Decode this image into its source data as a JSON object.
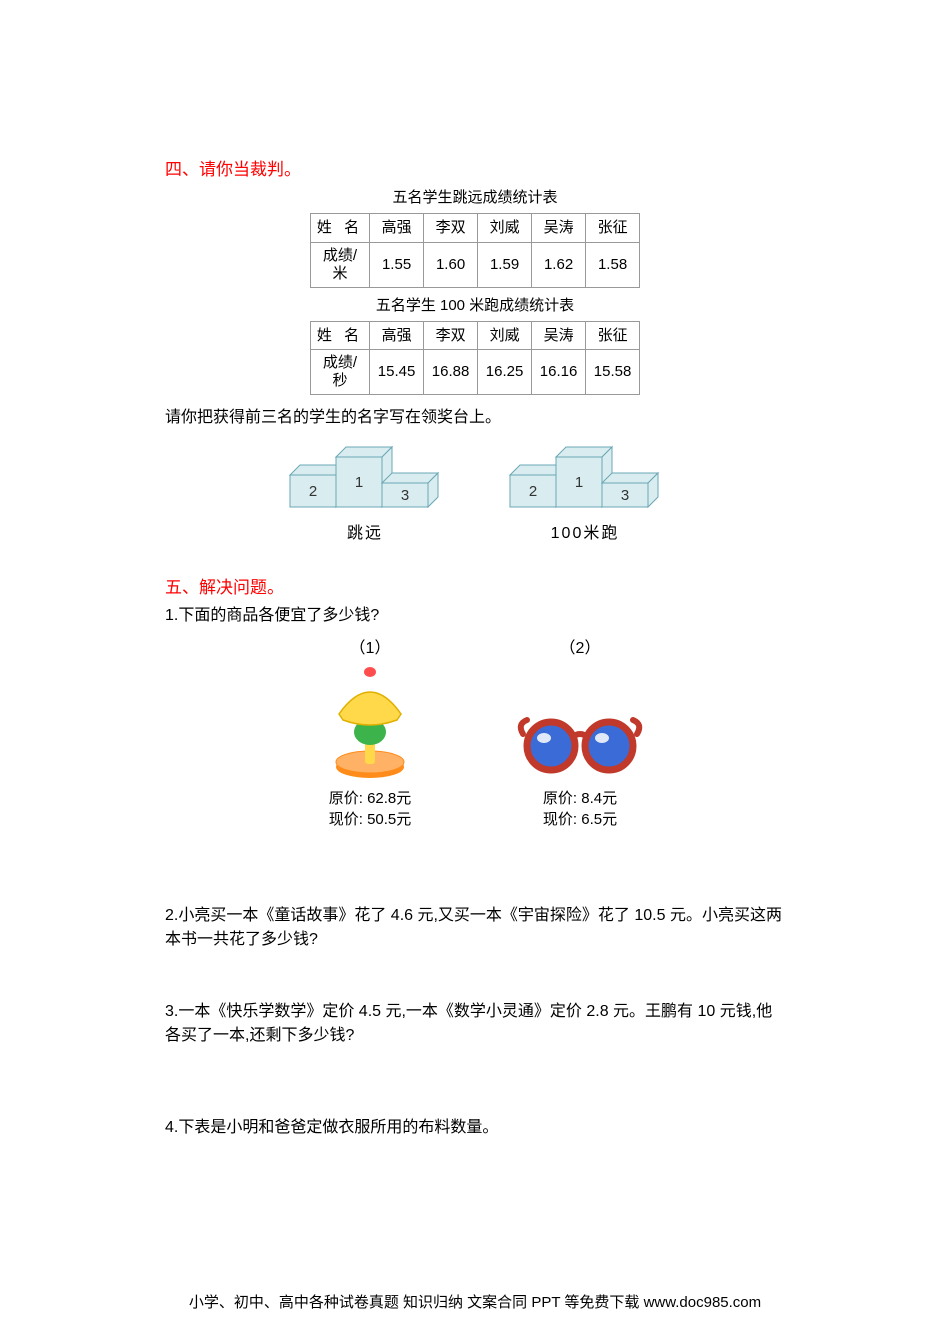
{
  "section4": {
    "title": "四、请你当裁判。",
    "table1": {
      "caption": "五名学生跳远成绩统计表",
      "header_label": "姓 名",
      "row_label_l1": "成绩/",
      "row_label_l2": "米",
      "names": [
        "高强",
        "李双",
        "刘威",
        "吴涛",
        "张征"
      ],
      "values": [
        "1.55",
        "1.60",
        "1.59",
        "1.62",
        "1.58"
      ]
    },
    "table2": {
      "caption": "五名学生 100 米跑成绩统计表",
      "header_label": "姓 名",
      "row_label_l1": "成绩/",
      "row_label_l2": "秒",
      "names": [
        "高强",
        "李双",
        "刘威",
        "吴涛",
        "张征"
      ],
      "values": [
        "15.45",
        "16.88",
        "16.25",
        "16.16",
        "15.58"
      ]
    },
    "instruction": "请你把获得前三名的学生的名字写在领奖台上。",
    "podium": {
      "labels": {
        "p1": "1",
        "p2": "2",
        "p3": "3"
      },
      "caption1": "跳远",
      "caption2": "100米跑",
      "fill": "#d9edf0",
      "stroke": "#6aa7b5"
    }
  },
  "section5": {
    "title": "五、解决问题。",
    "q1": {
      "text": "1.下面的商品各便宜了多少钱?",
      "items": [
        {
          "num": "（1）",
          "orig_label": "原价:",
          "curr_label": "现价:",
          "orig": "62.8元",
          "curr": "50.5元",
          "colors": {
            "shade": "#ffd94a",
            "body": "#3cb44b",
            "base": "#ff8c1a",
            "stem": "#ffd94a"
          }
        },
        {
          "num": "（2）",
          "orig_label": "原价:",
          "curr_label": "现价:",
          "orig": "8.4元",
          "curr": "6.5元",
          "colors": {
            "frame": "#c0392b",
            "lens": "#3b6bd6"
          }
        }
      ]
    },
    "q2": "2.小亮买一本《童话故事》花了 4.6 元,又买一本《宇宙探险》花了 10.5 元。小亮买这两本书一共花了多少钱?",
    "q3": "3.一本《快乐学数学》定价 4.5 元,一本《数学小灵通》定价 2.8 元。王鹏有 10 元钱,他各买了一本,还剩下多少钱?",
    "q4": "4.下表是小明和爸爸定做衣服所用的布料数量。"
  },
  "footer": "小学、初中、高中各种试卷真题 知识归纳 文案合同 PPT 等免费下载   www.doc985.com"
}
